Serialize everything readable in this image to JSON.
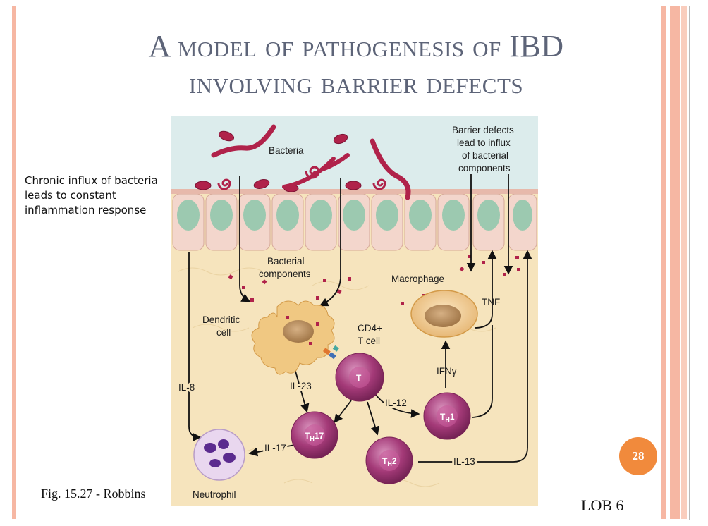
{
  "slide": {
    "title_line1": "A model of pathogenesis of IBD",
    "title_line2": "involving barrier defects",
    "side_note": "Chronic influx of bacteria leads to constant inflammation response",
    "caption": "Fig. 15.27 - Robbins",
    "footer_label": "LOB 6",
    "page_number": "28"
  },
  "colors": {
    "title": "#5d6478",
    "accent_stripe": "#f6b7a3",
    "page_badge": "#f18a3c",
    "lumen": "#dcecec",
    "lamina_propria": "#f6e4bd",
    "epithelium": "#f3d6cc",
    "bacteria": "#b0224a",
    "t_cell": "#a43a78"
  },
  "figure": {
    "labels": {
      "bacteria": "Bacteria",
      "barrier1": "Barrier defects",
      "barrier2": "lead to influx",
      "barrier3": "of bacterial",
      "barrier4": "components",
      "bac_comp1": "Bacterial",
      "bac_comp2": "components",
      "macrophage": "Macrophage",
      "tnf": "TNF",
      "dendritic1": "Dendritic",
      "dendritic2": "cell",
      "cd4_1": "CD4+",
      "cd4_2": "T cell",
      "ifng": "IFNγ",
      "il8": "IL-8",
      "il23": "IL-23",
      "il12": "IL-12",
      "il17": "IL-17",
      "il13": "IL-13",
      "neutrophil": "Neutrophil"
    },
    "cells": {
      "t": "T",
      "th17_main": "T",
      "th17_sub": "H",
      "th17_tail": "17",
      "th1_main": "T",
      "th1_sub": "H",
      "th1_tail": "1",
      "th2_main": "T",
      "th2_sub": "H",
      "th2_tail": "2"
    }
  }
}
